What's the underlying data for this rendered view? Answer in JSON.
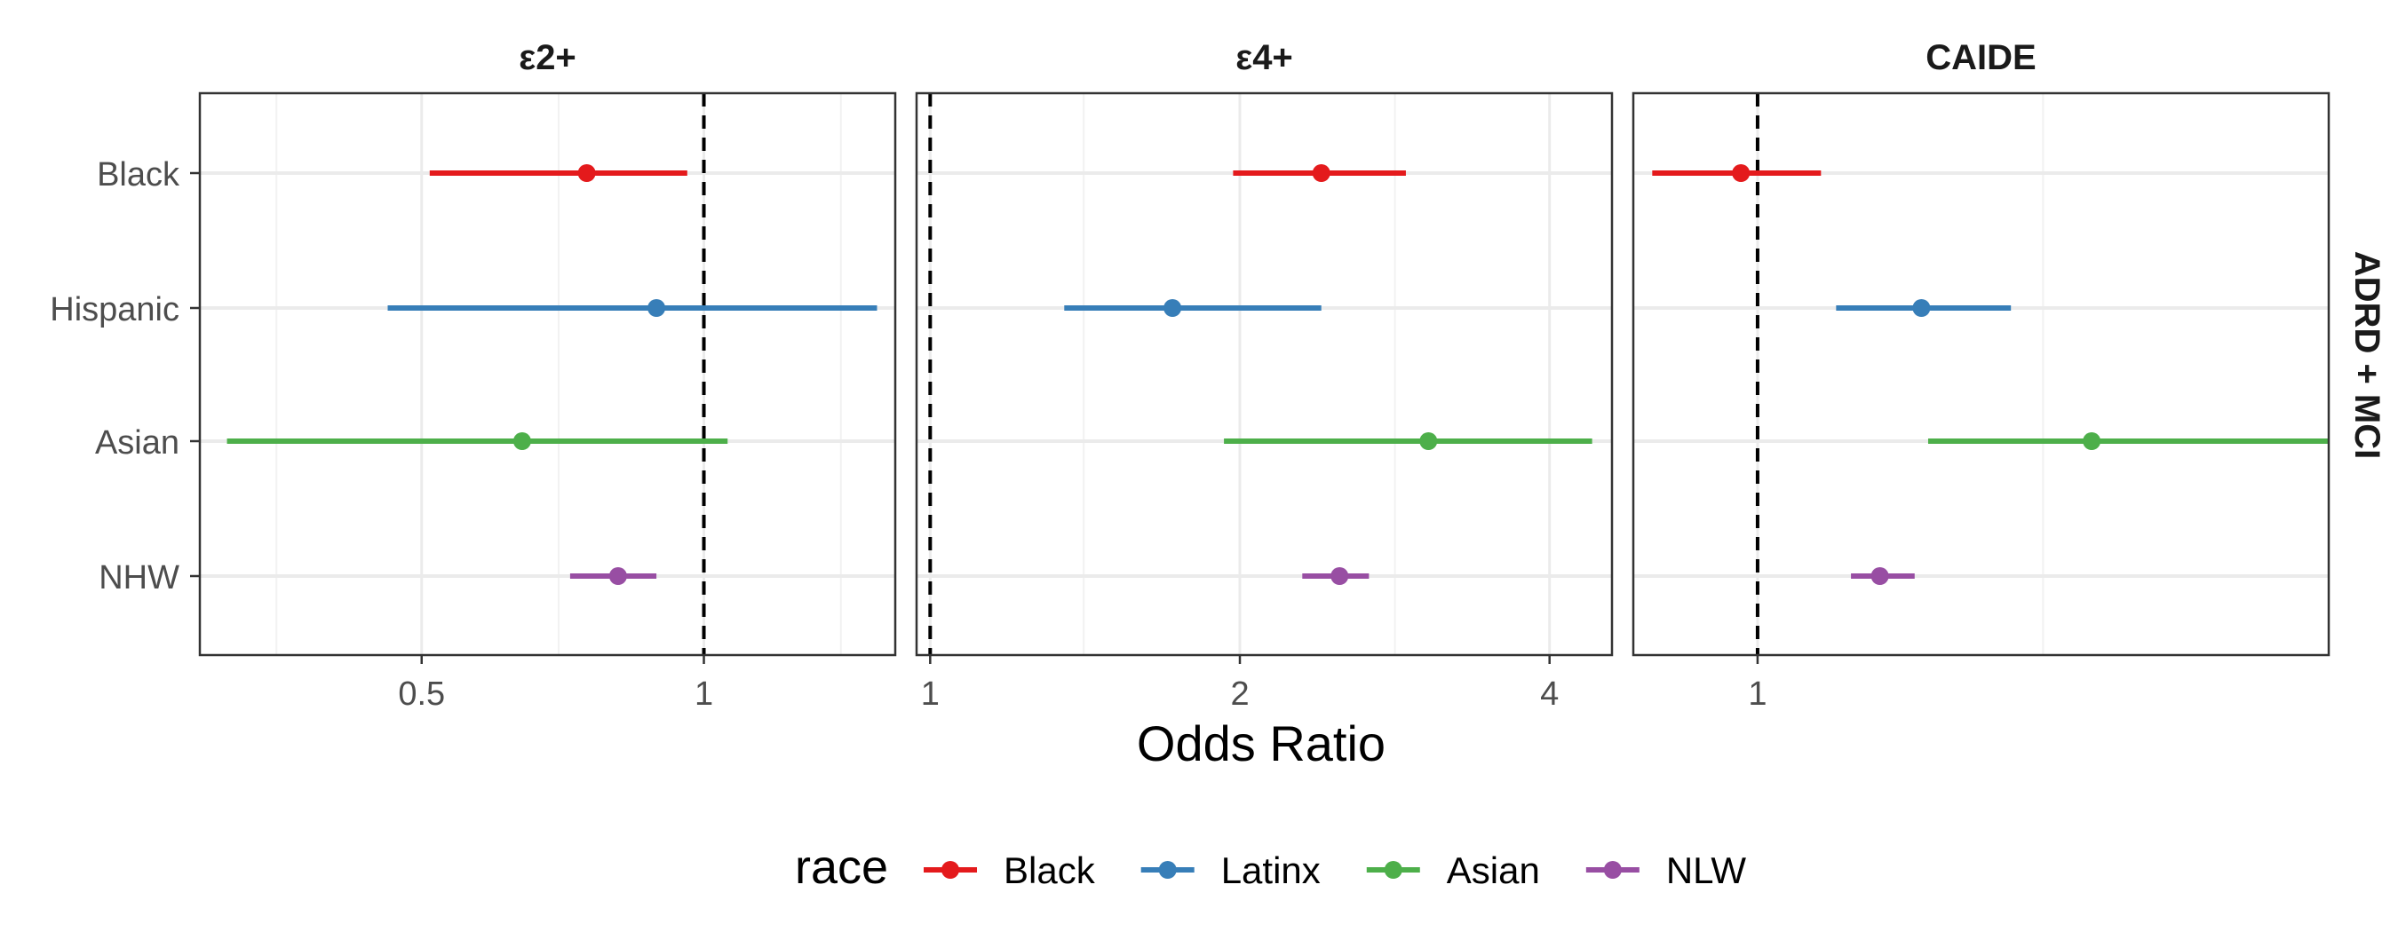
{
  "chart_data": {
    "type": "forest",
    "xlabel": "Odds Ratio",
    "x_scale": "log",
    "row_strip": "ADRD + MCI",
    "categories": [
      "Black",
      "Hispanic",
      "Asian",
      "NHW"
    ],
    "legend": {
      "title": "race",
      "position": "bottom",
      "entries": [
        {
          "label": "Black",
          "color": "#E41A1C"
        },
        {
          "label": "Latinx",
          "color": "#377EB8"
        },
        {
          "label": "Asian",
          "color": "#4DAF4A"
        },
        {
          "label": "NLW",
          "color": "#984EA3"
        }
      ]
    },
    "panels": [
      {
        "title": "ε2+",
        "xlim": [
          0.29,
          1.6
        ],
        "ticks": [
          0.5,
          1
        ],
        "tick_labels": [
          "0.5",
          "1"
        ],
        "minor_ticks": [
          0.35,
          0.7,
          1.4
        ],
        "reference": 1,
        "points": [
          {
            "category": "Black",
            "estimate": 0.75,
            "low": 0.51,
            "high": 0.96
          },
          {
            "category": "Hispanic",
            "estimate": 0.89,
            "low": 0.46,
            "high": 1.53
          },
          {
            "category": "Asian",
            "estimate": 0.64,
            "low": 0.31,
            "high": 1.06
          },
          {
            "category": "NHW",
            "estimate": 0.81,
            "low": 0.72,
            "high": 0.89
          }
        ]
      },
      {
        "title": "ε4+",
        "xlim": [
          0.97,
          4.6
        ],
        "ticks": [
          1,
          2,
          4
        ],
        "tick_labels": [
          "1",
          "2",
          "4"
        ],
        "minor_ticks": [
          1.41,
          2.83
        ],
        "reference": 1,
        "points": [
          {
            "category": "Black",
            "estimate": 2.4,
            "low": 1.97,
            "high": 2.9
          },
          {
            "category": "Hispanic",
            "estimate": 1.72,
            "low": 1.35,
            "high": 2.4
          },
          {
            "category": "Asian",
            "estimate": 3.05,
            "low": 1.93,
            "high": 4.4
          },
          {
            "category": "NHW",
            "estimate": 2.5,
            "low": 2.3,
            "high": 2.67
          }
        ]
      },
      {
        "title": "CAIDE",
        "xlim": [
          0.86,
          2.0
        ],
        "ticks": [
          1
        ],
        "tick_labels": [
          "1"
        ],
        "minor_ticks": [
          1.414
        ],
        "reference": 1,
        "points": [
          {
            "category": "Black",
            "estimate": 0.98,
            "low": 0.88,
            "high": 1.08
          },
          {
            "category": "Hispanic",
            "estimate": 1.22,
            "low": 1.1,
            "high": 1.36
          },
          {
            "category": "Asian",
            "estimate": 1.5,
            "low": 1.23,
            "high": 2.0
          },
          {
            "category": "NHW",
            "estimate": 1.16,
            "low": 1.12,
            "high": 1.21
          }
        ]
      }
    ]
  }
}
